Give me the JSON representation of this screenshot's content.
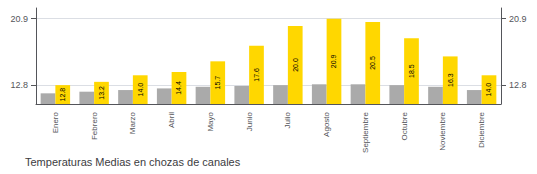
{
  "chart_data": {
    "type": "bar",
    "title": "Temperaturas Medias en chozas de canales",
    "categories": [
      "Enero",
      "Febrero",
      "Marzo",
      "Abril",
      "Mayo",
      "Junio",
      "Julio",
      "Agosto",
      "Septiembre",
      "Octubre",
      "Noviembre",
      "Diciembre"
    ],
    "series": [
      {
        "color": "#AAAAAA",
        "values": [
          11.8,
          12.0,
          12.2,
          12.4,
          12.6,
          12.7,
          12.8,
          12.9,
          12.9,
          12.8,
          12.6,
          12.2
        ]
      },
      {
        "color": "#FFD700",
        "values": [
          12.8,
          13.2,
          14.0,
          14.4,
          15.7,
          17.6,
          20.0,
          20.9,
          20.5,
          18.5,
          16.3,
          14.0
        ],
        "value_labels": [
          "12.8",
          "13.2",
          "14.0",
          "14.4",
          "15.7",
          "17.6",
          "20.0",
          "20.9",
          "20.5",
          "18.5",
          "16.3",
          "14.0"
        ],
        "data_labels": true
      }
    ],
    "ylim": [
      10.5,
      22.2
    ],
    "yticks": [
      12.8,
      20.9
    ],
    "y2lim": [
      10.5,
      22.2
    ],
    "y2ticks": [
      12.8,
      20.9
    ],
    "grid": true
  }
}
